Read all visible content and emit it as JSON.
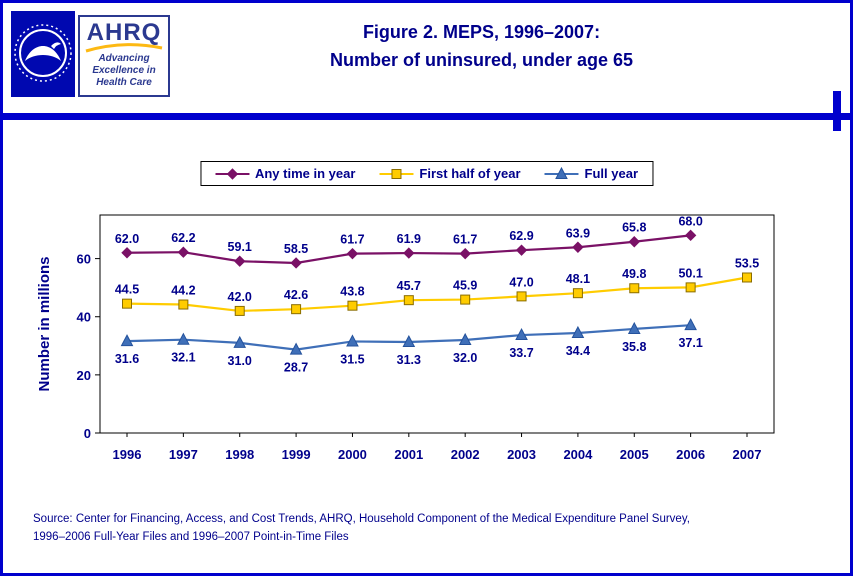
{
  "page": {
    "title_line1": "Figure 2. MEPS, 1996–2007:",
    "title_line2": "Number of uninsured, under age 65",
    "source_line1": "Source: Center for Financing, Access, and Cost Trends, AHRQ, Household Component of the Medical Expenditure Panel Survey,",
    "source_line2": "1996–2006 Full-Year Files and 1996–2007 Point-in-Time Files"
  },
  "logo": {
    "acronym": "AHRQ",
    "tagline_line1": "Advancing",
    "tagline_line2": "Excellence in",
    "tagline_line3": "Health Care"
  },
  "colors": {
    "border_blue": "#0000CD",
    "navy": "#00008B",
    "logo_navy": "#2B3990",
    "swoosh_yellow": "#FDB913",
    "series_any_time": "#7A1166",
    "series_first_half": "#FFCC00",
    "series_full_year": "#3F6FB8"
  },
  "chart_data": {
    "type": "line",
    "title": "Figure 2. MEPS, 1996–2007: Number of uninsured, under age 65",
    "xlabel": "",
    "ylabel": "Number in millions",
    "ylim": [
      0,
      75
    ],
    "yticks": [
      0,
      20,
      40,
      60
    ],
    "grid": false,
    "legend_position": "top",
    "categories": [
      "1996",
      "1997",
      "1998",
      "1999",
      "2000",
      "2001",
      "2002",
      "2003",
      "2004",
      "2005",
      "2006",
      "2007"
    ],
    "series": [
      {
        "name": "Any time in year",
        "marker": "diamond",
        "color": "#7A1166",
        "marker_stroke": "#7A1166",
        "label_position": "above",
        "values": [
          62.0,
          62.2,
          59.1,
          58.5,
          61.7,
          61.9,
          61.7,
          62.9,
          63.9,
          65.8,
          68.0,
          null
        ]
      },
      {
        "name": "First half of year",
        "marker": "square",
        "color": "#FFCC00",
        "marker_stroke": "#8A6D00",
        "label_position": "above",
        "values": [
          44.5,
          44.2,
          42.0,
          42.6,
          43.8,
          45.7,
          45.9,
          47.0,
          48.1,
          49.8,
          50.1,
          53.5
        ]
      },
      {
        "name": "Full year",
        "marker": "triangle",
        "color": "#3F6FB8",
        "marker_stroke": "#24529C",
        "label_position": "below",
        "values": [
          31.6,
          32.1,
          31.0,
          28.7,
          31.5,
          31.3,
          32.0,
          33.7,
          34.4,
          35.8,
          37.1,
          null
        ]
      }
    ]
  }
}
